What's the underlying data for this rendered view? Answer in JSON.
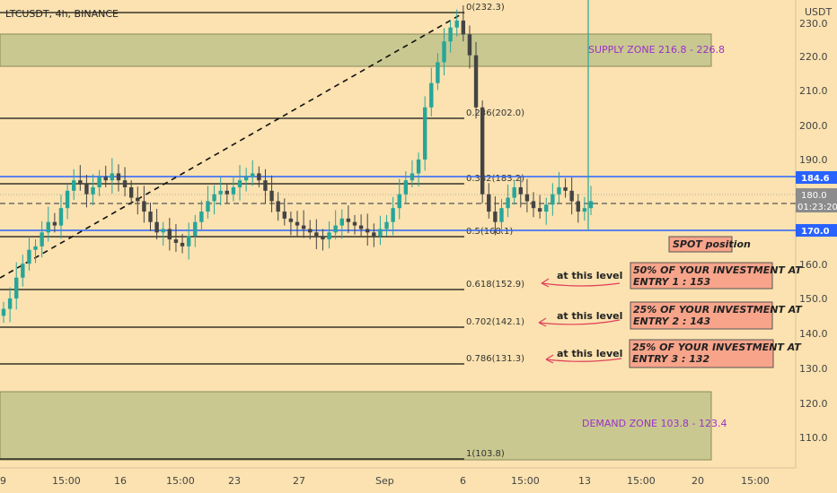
{
  "chart_data": {
    "type": "candlestick",
    "title": "LTCUSDT, 4h, BINANCE",
    "currency": "USDT",
    "ylim": [
      101,
      235
    ],
    "y_ticks": [
      "230.0",
      "220.0",
      "210.0",
      "200.0",
      "190.0",
      "160.0",
      "150.0",
      "140.0",
      "130.0",
      "120.0",
      "110.0"
    ],
    "x_ticks": [
      "9",
      "15:00",
      "16",
      "15:00",
      "23",
      "27",
      "Sep",
      "6",
      "15:00",
      "13",
      "15:00",
      "20",
      "15:00"
    ],
    "price_labels": [
      {
        "text": "184.6",
        "value": 184.6,
        "color": "#2962ff"
      },
      {
        "text": "180.0",
        "value": 180.0,
        "color": "#888888"
      },
      {
        "text": "01:23:20",
        "value": 178.4,
        "color": "#888888"
      },
      {
        "text": "170.0",
        "value": 170.0,
        "color": "#2962ff"
      }
    ],
    "fib_levels": [
      {
        "label": "0(232.3)",
        "value": 232.3
      },
      {
        "label": "0.236(202.0)",
        "value": 202.0
      },
      {
        "label": "0.382(183.2)",
        "value": 183.2
      },
      {
        "label": "0.5(168.1)",
        "value": 168.1
      },
      {
        "label": "0.618(152.9)",
        "value": 152.9
      },
      {
        "label": "0.702(142.1)",
        "value": 142.1
      },
      {
        "label": "0.786(131.3)",
        "value": 131.3
      },
      {
        "label": "1(103.8)",
        "value": 103.8
      }
    ],
    "zones": [
      {
        "label": "SUPPLY ZONE 216.8 - 226.8",
        "low": 216.8,
        "high": 226.8,
        "color": "#c9c890"
      },
      {
        "label": "DEMAND ZONE  103.8 - 123.4",
        "low": 103.8,
        "high": 123.4,
        "color": "#c9c890"
      }
    ],
    "horizontal_lines": [
      {
        "value": 184.6,
        "color": "#2962ff"
      },
      {
        "value": 170.0,
        "color": "#2962ff"
      },
      {
        "value": 178.4,
        "color": "#555555",
        "dashed": true
      }
    ],
    "annotations": [
      {
        "text": "SPOT position",
        "value": 166.5
      },
      {
        "arrow": "at this level",
        "line1": "50% OF YOUR INVESTMENT AT",
        "line2": "ENTRY 1 : 153",
        "value": 153
      },
      {
        "arrow": "at this level",
        "line1": "25% OF YOUR INVESTMENT AT",
        "line2": "ENTRY 2 : 143",
        "value": 143
      },
      {
        "arrow": "at this level",
        "line1": "25% OF YOUR INVESTMENT AT",
        "line2": "ENTRY 3 : 132",
        "value": 132
      }
    ],
    "close_series": [
      147,
      150,
      156,
      160,
      164,
      165,
      169,
      172,
      171,
      176,
      181,
      184,
      183,
      180,
      182,
      185,
      184,
      186,
      184,
      182,
      179,
      178,
      175,
      172,
      169,
      170,
      167,
      166,
      165,
      168,
      172,
      175,
      178,
      180,
      181,
      180,
      182,
      184,
      185,
      186,
      184,
      181,
      178,
      175,
      173,
      172,
      171,
      170,
      169,
      168,
      167,
      169,
      171,
      173,
      172,
      171,
      170,
      169,
      168,
      170,
      172,
      176,
      180,
      184,
      186,
      190,
      205,
      212,
      218,
      224,
      228,
      230,
      226,
      220,
      205,
      180,
      175,
      172,
      176,
      179,
      182,
      180,
      178,
      176,
      175,
      177,
      180,
      182,
      181,
      178,
      175,
      176,
      178
    ]
  }
}
